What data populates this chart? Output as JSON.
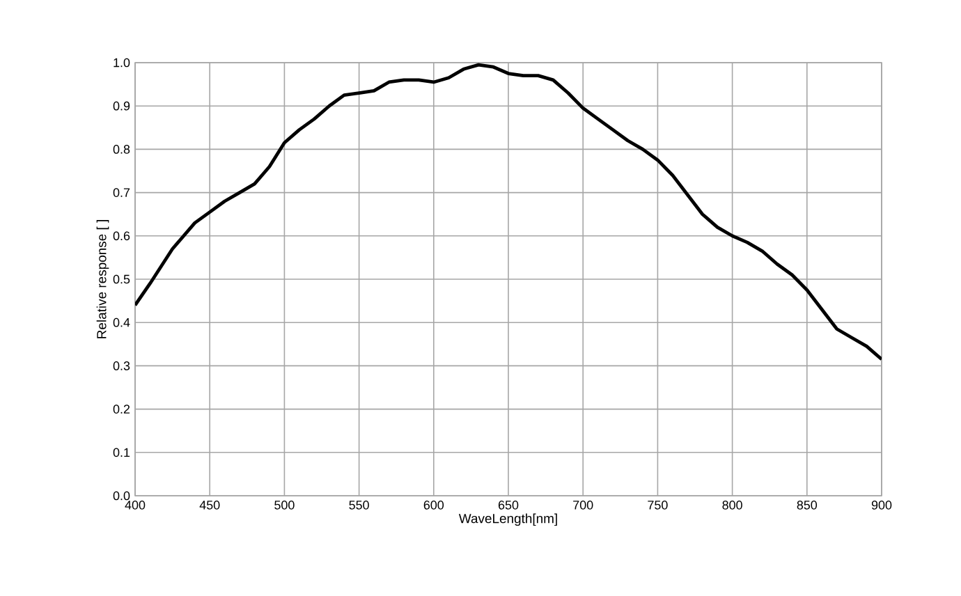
{
  "chart_data": {
    "type": "line",
    "xlabel": "WaveLength[nm]",
    "ylabel": "Relative response [ ]",
    "x": [
      400,
      410,
      425,
      440,
      450,
      460,
      470,
      480,
      490,
      500,
      510,
      520,
      530,
      540,
      550,
      560,
      570,
      580,
      590,
      600,
      610,
      620,
      630,
      640,
      650,
      660,
      670,
      680,
      690,
      700,
      710,
      720,
      730,
      740,
      750,
      760,
      770,
      780,
      790,
      800,
      810,
      820,
      830,
      840,
      850,
      860,
      870,
      880,
      890,
      900
    ],
    "series": [
      {
        "color": "#000000",
        "values": [
          0.44,
          0.49,
          0.57,
          0.63,
          0.655,
          0.68,
          0.7,
          0.72,
          0.76,
          0.815,
          0.845,
          0.87,
          0.9,
          0.925,
          0.93,
          0.935,
          0.955,
          0.96,
          0.96,
          0.955,
          0.965,
          0.985,
          0.995,
          0.99,
          0.975,
          0.97,
          0.97,
          0.96,
          0.93,
          0.895,
          0.87,
          0.845,
          0.82,
          0.8,
          0.775,
          0.74,
          0.695,
          0.65,
          0.62,
          0.6,
          0.585,
          0.565,
          0.535,
          0.51,
          0.475,
          0.43,
          0.385,
          0.365,
          0.345,
          0.315
        ]
      }
    ],
    "xlim": [
      400,
      900
    ],
    "ylim": [
      0,
      1
    ],
    "xticks": [
      400,
      450,
      500,
      550,
      600,
      650,
      700,
      750,
      800,
      850,
      900
    ],
    "yticks": [
      {
        "value": 0,
        "label": "0.0"
      },
      {
        "value": 0.1,
        "label": "0.1"
      },
      {
        "value": 0.2,
        "label": "0.2"
      },
      {
        "value": 0.3,
        "label": "0.3"
      },
      {
        "value": 0.4,
        "label": "0.4"
      },
      {
        "value": 0.5,
        "label": "0.5"
      },
      {
        "value": 0.6,
        "label": "0.6"
      },
      {
        "value": 0.7,
        "label": "0.7"
      },
      {
        "value": 0.8,
        "label": "0.8"
      },
      {
        "value": 0.9,
        "label": "0.9"
      },
      {
        "value": 1,
        "label": "1.0"
      }
    ],
    "grid": true,
    "marker": "none",
    "line_style": "solid"
  }
}
